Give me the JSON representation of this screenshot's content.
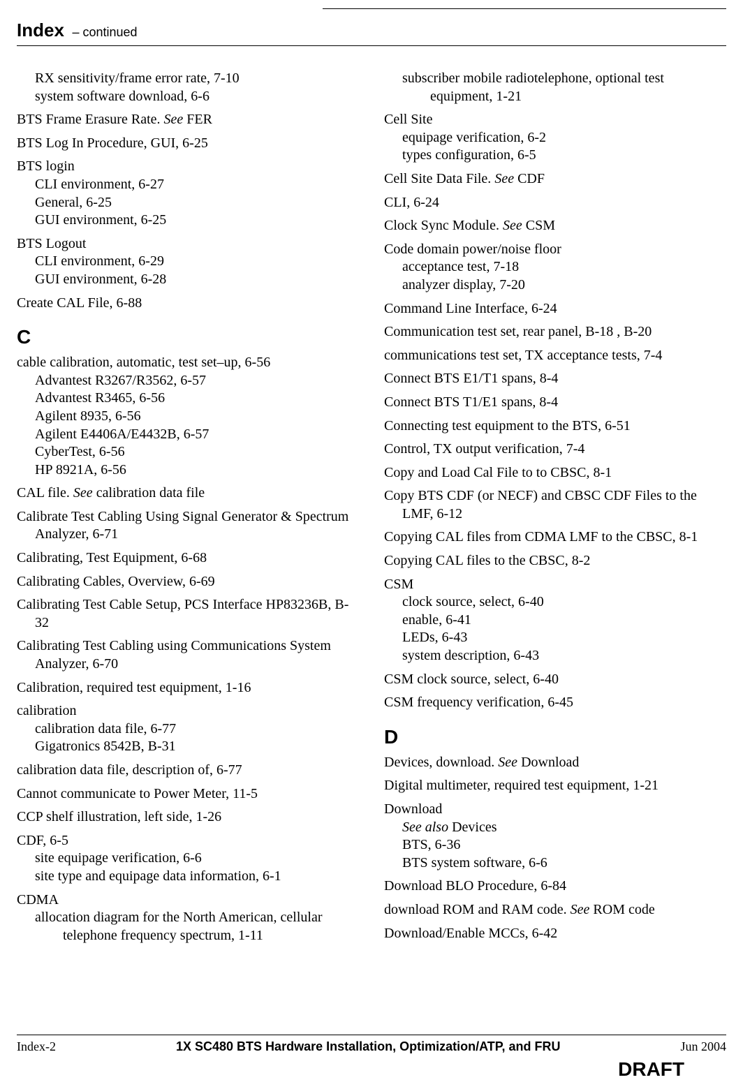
{
  "header": {
    "title": "Index",
    "continued": "– continued"
  },
  "letters": {
    "C": "C",
    "D": "D"
  },
  "left": [
    {
      "type": "entry",
      "main": "RX sensitivity/frame error rate, 7-10",
      "subs": [
        "system software download, 6-6"
      ],
      "noMainIndent": true,
      "indentOnly": true
    },
    {
      "type": "entry",
      "mainHtml": "BTS Frame Erasure Rate. <em>See</em> FER"
    },
    {
      "type": "entry",
      "main": "BTS Log In Procedure, GUI, 6-25"
    },
    {
      "type": "entry",
      "main": "BTS login",
      "subs": [
        "CLI environment, 6-27",
        "General, 6-25",
        "GUI environment, 6-25"
      ]
    },
    {
      "type": "entry",
      "main": "BTS Logout",
      "subs": [
        "CLI environment, 6-29",
        "GUI environment, 6-28"
      ]
    },
    {
      "type": "entry",
      "main": "Create CAL File, 6-88"
    },
    {
      "type": "letter",
      "key": "C"
    },
    {
      "type": "entry",
      "main": "cable calibration, automatic, test set–up, 6-56",
      "subs": [
        "Advantest R3267/R3562, 6-57",
        "Advantest R3465, 6-56",
        "Agilent 8935, 6-56",
        "Agilent E4406A/E4432B, 6-57",
        "CyberTest, 6-56",
        "HP 8921A, 6-56"
      ]
    },
    {
      "type": "entry",
      "mainHtml": "CAL file. <em>See</em> calibration data file"
    },
    {
      "type": "entry",
      "main": "Calibrate Test Cabling Using Signal Generator & Spectrum Analyzer, 6-71"
    },
    {
      "type": "entry",
      "main": "Calibrating, Test Equipment, 6-68"
    },
    {
      "type": "entry",
      "main": "Calibrating Cables, Overview, 6-69"
    },
    {
      "type": "entry",
      "main": "Calibrating Test Cable Setup, PCS Interface HP83236B, B-32"
    },
    {
      "type": "entry",
      "main": "Calibrating Test Cabling using Communications System Analyzer, 6-70"
    },
    {
      "type": "entry",
      "main": "Calibration, required test equipment, 1-16"
    },
    {
      "type": "entry",
      "main": "calibration",
      "subs": [
        "calibration data file, 6-77",
        "Gigatronics 8542B, B-31"
      ]
    },
    {
      "type": "entry",
      "main": "calibration data file, description of, 6-77"
    },
    {
      "type": "entry",
      "main": "Cannot communicate to Power Meter, 11-5"
    },
    {
      "type": "entry",
      "main": "CCP shelf illustration, left side, 1-26"
    },
    {
      "type": "entry",
      "main": "CDF, 6-5",
      "subs": [
        "site equipage verification, 6-6",
        "site type and equipage data information, 6-1"
      ]
    },
    {
      "type": "entry",
      "main": "CDMA",
      "subsHtml": [
        "allocation diagram for the North American, cellular telephone frequency spectrum, 1-11"
      ]
    }
  ],
  "right": [
    {
      "type": "entry",
      "subsHtml": [
        "subscriber mobile radiotelephone, optional test equipment, 1-21"
      ],
      "noMain": true
    },
    {
      "type": "entry",
      "main": "Cell Site",
      "subs": [
        "equipage verification, 6-2",
        "types configuration, 6-5"
      ]
    },
    {
      "type": "entry",
      "mainHtml": "Cell Site Data File. <em>See</em> CDF"
    },
    {
      "type": "entry",
      "main": "CLI, 6-24"
    },
    {
      "type": "entry",
      "mainHtml": "Clock Sync Module. <em>See</em> CSM"
    },
    {
      "type": "entry",
      "main": "Code domain power/noise floor",
      "subs": [
        "acceptance test, 7-18",
        "analyzer display, 7-20"
      ]
    },
    {
      "type": "entry",
      "main": "Command Line Interface, 6-24"
    },
    {
      "type": "entry",
      "main": "Communication test set, rear panel, B-18 , B-20"
    },
    {
      "type": "entry",
      "main": "communications test set, TX acceptance tests, 7-4"
    },
    {
      "type": "entry",
      "main": "Connect BTS E1/T1 spans, 8-4"
    },
    {
      "type": "entry",
      "main": "Connect BTS T1/E1 spans, 8-4"
    },
    {
      "type": "entry",
      "main": "Connecting test equipment to the BTS, 6-51"
    },
    {
      "type": "entry",
      "main": "Control, TX output verification, 7-4"
    },
    {
      "type": "entry",
      "main": "Copy and Load Cal File to to CBSC, 8-1"
    },
    {
      "type": "entry",
      "main": "Copy BTS CDF (or NECF) and CBSC CDF Files to the LMF, 6-12"
    },
    {
      "type": "entry",
      "main": "Copying CAL files from CDMA LMF to the CBSC, 8-1"
    },
    {
      "type": "entry",
      "main": "Copying CAL files to the CBSC, 8-2"
    },
    {
      "type": "entry",
      "main": "CSM",
      "subs": [
        "clock source, select, 6-40",
        "enable, 6-41",
        "LEDs, 6-43",
        "system description, 6-43"
      ]
    },
    {
      "type": "entry",
      "main": "CSM clock source, select, 6-40"
    },
    {
      "type": "entry",
      "main": "CSM frequency verification, 6-45"
    },
    {
      "type": "letter",
      "key": "D"
    },
    {
      "type": "entry",
      "mainHtml": "Devices, download. <em>See</em> Download"
    },
    {
      "type": "entry",
      "main": "Digital multimeter, required test equipment, 1-21"
    },
    {
      "type": "entry",
      "main": "Download",
      "subsHtml": [
        "<em>See also</em> Devices",
        "BTS, 6-36",
        "BTS system software, 6-6"
      ]
    },
    {
      "type": "entry",
      "main": "Download BLO Procedure, 6-84"
    },
    {
      "type": "entry",
      "mainHtml": "download ROM and RAM code. <em>See</em> ROM code"
    },
    {
      "type": "entry",
      "main": "Download/Enable MCCs, 6-42"
    }
  ],
  "footer": {
    "left": "Index-2",
    "center": "1X SC480 BTS Hardware Installation, Optimization/ATP, and FRU",
    "right": "Jun 2004",
    "draft": "DRAFT"
  }
}
